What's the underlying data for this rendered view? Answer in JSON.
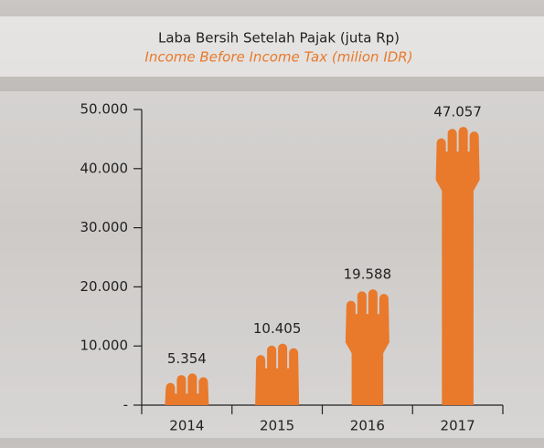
{
  "chart_data": {
    "type": "bar",
    "title": "Laba Bersih Setelah Pajak (juta Rp)",
    "subtitle": "Income Before Income Tax (milion IDR)",
    "categories": [
      "2014",
      "2015",
      "2016",
      "2017"
    ],
    "values": [
      5354,
      10405,
      19588,
      47057
    ],
    "value_labels": [
      "5.354",
      "10.405",
      "19.588",
      "47.057"
    ],
    "color": "#e9792b",
    "ylim": [
      0,
      50000
    ],
    "yticks": [
      {
        "value": 0,
        "label": "-"
      },
      {
        "value": 10000,
        "label": "10.000"
      },
      {
        "value": 20000,
        "label": "20.000"
      },
      {
        "value": 30000,
        "label": "30.000"
      },
      {
        "value": 40000,
        "label": "40.000"
      },
      {
        "value": 50000,
        "label": "50.000"
      }
    ]
  }
}
